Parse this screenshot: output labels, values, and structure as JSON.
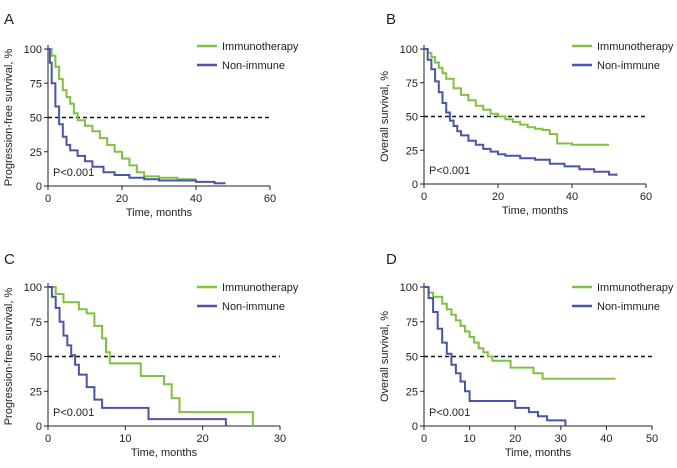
{
  "colors": {
    "immunotherapy": "#7fc241",
    "non_immune": "#4b55a6",
    "axis": "#222222",
    "reference": "#111111"
  },
  "chart_data": [
    {
      "type": "line",
      "panel": "A",
      "xlabel": "Time, months",
      "ylabel": "Progression-free survival, %",
      "xlim": [
        0,
        60
      ],
      "ylim": [
        0,
        100
      ],
      "xticks": [
        0,
        20,
        40,
        60
      ],
      "yticks": [
        0,
        25,
        50,
        75,
        100
      ],
      "reference_line": 50,
      "pvalue": "P<0.001",
      "legend_position": "top-right",
      "series": [
        {
          "name": "Immunotherapy",
          "color_key": "immunotherapy",
          "x": [
            0,
            1,
            2,
            3,
            4,
            5,
            6,
            7,
            8,
            10,
            12,
            14,
            16,
            18,
            20,
            22,
            24,
            26,
            30,
            35,
            40
          ],
          "y": [
            100,
            95,
            87,
            78,
            70,
            65,
            60,
            53,
            48,
            44,
            40,
            35,
            30,
            25,
            20,
            15,
            10,
            7,
            6,
            5,
            5
          ]
        },
        {
          "name": "Non-immune",
          "color_key": "non_immune",
          "x": [
            0,
            0.5,
            1,
            2,
            3,
            4,
            5,
            6,
            8,
            10,
            12,
            15,
            18,
            22,
            26,
            30,
            35,
            40,
            45,
            48
          ],
          "y": [
            100,
            90,
            75,
            58,
            45,
            36,
            30,
            26,
            22,
            18,
            14,
            10,
            8,
            6,
            5,
            4,
            4,
            3,
            2,
            2
          ]
        }
      ]
    },
    {
      "type": "line",
      "panel": "B",
      "xlabel": "Time, months",
      "ylabel": "Overall survival, %",
      "xlim": [
        0,
        60
      ],
      "ylim": [
        0,
        100
      ],
      "xticks": [
        0,
        20,
        40,
        60
      ],
      "yticks": [
        0,
        25,
        50,
        75,
        100
      ],
      "reference_line": 50,
      "pvalue": "P<0.001",
      "legend_position": "top-right",
      "series": [
        {
          "name": "Immunotherapy",
          "color_key": "immunotherapy",
          "x": [
            0,
            1,
            2,
            3,
            4,
            5,
            6,
            8,
            10,
            12,
            14,
            16,
            18,
            20,
            22,
            24,
            26,
            28,
            30,
            32,
            34,
            36,
            40,
            45,
            50
          ],
          "y": [
            100,
            97,
            94,
            90,
            86,
            82,
            78,
            71,
            66,
            62,
            58,
            55,
            52,
            50,
            48,
            46,
            44,
            42,
            41,
            40,
            37,
            30,
            29,
            29,
            29
          ]
        },
        {
          "name": "Non-immune",
          "color_key": "non_immune",
          "x": [
            0,
            1,
            2,
            3,
            4,
            5,
            6,
            7,
            8,
            9,
            10,
            12,
            14,
            16,
            18,
            20,
            22,
            26,
            30,
            34,
            38,
            42,
            46,
            50,
            52
          ],
          "y": [
            100,
            92,
            85,
            76,
            68,
            60,
            53,
            47,
            43,
            39,
            36,
            32,
            29,
            26,
            24,
            22,
            21,
            19,
            18,
            15,
            13,
            11,
            9,
            7,
            6
          ]
        }
      ]
    },
    {
      "type": "line",
      "panel": "C",
      "xlabel": "Time, months",
      "ylabel": "Progression-free survival, %",
      "xlim": [
        0,
        30
      ],
      "ylim": [
        0,
        100
      ],
      "xticks": [
        0,
        10,
        20,
        30
      ],
      "yticks": [
        0,
        25,
        50,
        75,
        100
      ],
      "reference_line": 50,
      "pvalue": "P<0.001",
      "legend_position": "top-right",
      "series": [
        {
          "name": "Immunotherapy",
          "color_key": "immunotherapy",
          "x": [
            0,
            1,
            2,
            4,
            5,
            6,
            7,
            7.5,
            8,
            12,
            15,
            16,
            17,
            26.5
          ],
          "y": [
            100,
            95,
            89,
            84,
            81,
            72,
            63,
            53,
            45,
            36,
            30,
            20,
            10,
            0
          ]
        },
        {
          "name": "Non-immune",
          "color_key": "non_immune",
          "x": [
            0,
            0.5,
            1,
            1.5,
            2,
            2.5,
            3,
            3.5,
            4,
            5,
            6,
            7,
            13,
            23
          ],
          "y": [
            100,
            93,
            85,
            75,
            65,
            58,
            51,
            44,
            37,
            28,
            19,
            13,
            5,
            0
          ]
        }
      ]
    },
    {
      "type": "line",
      "panel": "D",
      "xlabel": "Time, months",
      "ylabel": "Overall survival, %",
      "xlim": [
        0,
        50
      ],
      "ylim": [
        0,
        100
      ],
      "xticks": [
        0,
        10,
        20,
        30,
        40,
        50
      ],
      "yticks": [
        0,
        25,
        50,
        75,
        100
      ],
      "reference_line": 50,
      "pvalue": "P<0.001",
      "legend_position": "top-right",
      "series": [
        {
          "name": "Immunotherapy",
          "color_key": "immunotherapy",
          "x": [
            0,
            1,
            2,
            4,
            5,
            6,
            7,
            8,
            9,
            10,
            11,
            12,
            13,
            14,
            15,
            19,
            24,
            26,
            42
          ],
          "y": [
            100,
            96,
            93,
            88,
            84,
            80,
            76,
            72,
            68,
            64,
            60,
            56,
            53,
            50,
            47,
            42,
            38,
            34,
            34
          ]
        },
        {
          "name": "Non-immune",
          "color_key": "non_immune",
          "x": [
            0,
            1,
            2,
            3,
            4,
            5,
            6,
            7,
            8,
            9,
            10,
            20,
            23,
            25,
            27,
            31
          ],
          "y": [
            100,
            92,
            82,
            70,
            60,
            52,
            44,
            38,
            32,
            25,
            18,
            13,
            10,
            7,
            4,
            0
          ]
        }
      ]
    }
  ]
}
